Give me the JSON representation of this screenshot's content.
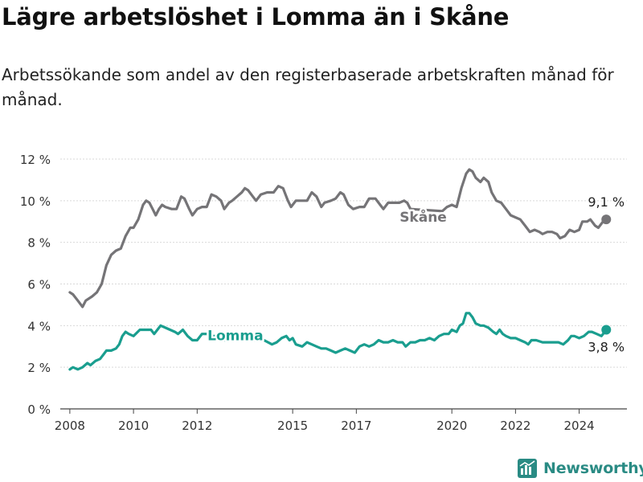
{
  "title": "Lägre arbetslöshet i Lomma än i Skåne",
  "subtitle": "Arbetssökande som andel av den registerbaserade arbetskraften månad för månad.",
  "brand": "Newsworthy",
  "colors": {
    "skane": "#757477",
    "lomma": "#1a9e8f",
    "grid": "#d9d9d9",
    "axis": "#444444",
    "brand": "#2a8b84"
  },
  "chart_data": {
    "type": "line",
    "title": "Lägre arbetslöshet i Lomma än i Skåne",
    "xlabel": "",
    "ylabel": "",
    "xlim": [
      2007.7,
      2025.5
    ],
    "ylim": [
      0,
      12
    ],
    "grid": true,
    "yticks": [
      0,
      2,
      4,
      6,
      8,
      10,
      12
    ],
    "ytick_labels": [
      "0 %",
      "2 %",
      "4 %",
      "6 %",
      "8 %",
      "10 %",
      "12 %"
    ],
    "xticks": [
      2008,
      2010,
      2012,
      2015,
      2017,
      2020,
      2022,
      2024
    ],
    "xtick_labels": [
      "2008",
      "2010",
      "2012",
      "2015",
      "2017",
      "2020",
      "2022",
      "2024"
    ],
    "series": [
      {
        "name": "Skåne",
        "label": "Skåne",
        "end_label": "9,1 %",
        "end_value": 9.1,
        "points": [
          [
            2008.0,
            5.6
          ],
          [
            2008.1,
            5.5
          ],
          [
            2008.25,
            5.2
          ],
          [
            2008.4,
            4.9
          ],
          [
            2008.5,
            5.2
          ],
          [
            2008.7,
            5.4
          ],
          [
            2008.85,
            5.6
          ],
          [
            2009.0,
            6.0
          ],
          [
            2009.15,
            6.9
          ],
          [
            2009.3,
            7.4
          ],
          [
            2009.45,
            7.6
          ],
          [
            2009.6,
            7.7
          ],
          [
            2009.75,
            8.3
          ],
          [
            2009.9,
            8.7
          ],
          [
            2010.0,
            8.7
          ],
          [
            2010.15,
            9.1
          ],
          [
            2010.3,
            9.8
          ],
          [
            2010.4,
            10.0
          ],
          [
            2010.5,
            9.9
          ],
          [
            2010.6,
            9.6
          ],
          [
            2010.7,
            9.3
          ],
          [
            2010.8,
            9.6
          ],
          [
            2010.9,
            9.8
          ],
          [
            2011.0,
            9.7
          ],
          [
            2011.2,
            9.6
          ],
          [
            2011.35,
            9.6
          ],
          [
            2011.5,
            10.2
          ],
          [
            2011.6,
            10.1
          ],
          [
            2011.75,
            9.6
          ],
          [
            2011.85,
            9.3
          ],
          [
            2012.0,
            9.6
          ],
          [
            2012.15,
            9.7
          ],
          [
            2012.3,
            9.7
          ],
          [
            2012.45,
            10.3
          ],
          [
            2012.6,
            10.2
          ],
          [
            2012.75,
            10.0
          ],
          [
            2012.85,
            9.6
          ],
          [
            2013.0,
            9.9
          ],
          [
            2013.1,
            10.0
          ],
          [
            2013.25,
            10.2
          ],
          [
            2013.4,
            10.4
          ],
          [
            2013.5,
            10.6
          ],
          [
            2013.6,
            10.5
          ],
          [
            2013.75,
            10.2
          ],
          [
            2013.85,
            10.0
          ],
          [
            2014.0,
            10.3
          ],
          [
            2014.2,
            10.4
          ],
          [
            2014.4,
            10.4
          ],
          [
            2014.55,
            10.7
          ],
          [
            2014.7,
            10.6
          ],
          [
            2014.85,
            10.0
          ],
          [
            2014.95,
            9.7
          ],
          [
            2015.1,
            10.0
          ],
          [
            2015.3,
            10.0
          ],
          [
            2015.45,
            10.0
          ],
          [
            2015.6,
            10.4
          ],
          [
            2015.75,
            10.2
          ],
          [
            2015.9,
            9.7
          ],
          [
            2016.0,
            9.9
          ],
          [
            2016.2,
            10.0
          ],
          [
            2016.35,
            10.1
          ],
          [
            2016.5,
            10.4
          ],
          [
            2016.6,
            10.3
          ],
          [
            2016.75,
            9.8
          ],
          [
            2016.9,
            9.6
          ],
          [
            2017.1,
            9.7
          ],
          [
            2017.25,
            9.7
          ],
          [
            2017.4,
            10.1
          ],
          [
            2017.6,
            10.1
          ],
          [
            2017.75,
            9.8
          ],
          [
            2017.85,
            9.6
          ],
          [
            2018.0,
            9.9
          ],
          [
            2018.2,
            9.9
          ],
          [
            2018.35,
            9.9
          ],
          [
            2018.5,
            10.0
          ],
          [
            2018.6,
            9.9
          ],
          [
            2018.7,
            9.6
          ],
          [
            2019.7,
            9.5
          ],
          [
            2019.85,
            9.7
          ],
          [
            2020.0,
            9.8
          ],
          [
            2020.15,
            9.7
          ],
          [
            2020.3,
            10.6
          ],
          [
            2020.45,
            11.3
          ],
          [
            2020.55,
            11.5
          ],
          [
            2020.65,
            11.4
          ],
          [
            2020.75,
            11.1
          ],
          [
            2020.9,
            10.9
          ],
          [
            2021.0,
            11.1
          ],
          [
            2021.15,
            10.9
          ],
          [
            2021.25,
            10.4
          ],
          [
            2021.4,
            10.0
          ],
          [
            2021.55,
            9.9
          ],
          [
            2021.7,
            9.6
          ],
          [
            2021.85,
            9.3
          ],
          [
            2022.0,
            9.2
          ],
          [
            2022.15,
            9.1
          ],
          [
            2022.3,
            8.8
          ],
          [
            2022.45,
            8.5
          ],
          [
            2022.6,
            8.6
          ],
          [
            2022.75,
            8.5
          ],
          [
            2022.85,
            8.4
          ],
          [
            2023.0,
            8.5
          ],
          [
            2023.15,
            8.5
          ],
          [
            2023.3,
            8.4
          ],
          [
            2023.4,
            8.2
          ],
          [
            2023.55,
            8.3
          ],
          [
            2023.7,
            8.6
          ],
          [
            2023.85,
            8.5
          ],
          [
            2024.0,
            8.6
          ],
          [
            2024.1,
            9.0
          ],
          [
            2024.25,
            9.0
          ],
          [
            2024.35,
            9.1
          ],
          [
            2024.5,
            8.8
          ],
          [
            2024.6,
            8.7
          ],
          [
            2024.75,
            9.0
          ],
          [
            2024.85,
            9.1
          ]
        ]
      },
      {
        "name": "Lomma",
        "label": "Lomma",
        "end_label": "3,8 %",
        "end_value": 3.8,
        "points": [
          [
            2008.0,
            1.9
          ],
          [
            2008.1,
            2.0
          ],
          [
            2008.25,
            1.9
          ],
          [
            2008.4,
            2.0
          ],
          [
            2008.55,
            2.2
          ],
          [
            2008.65,
            2.1
          ],
          [
            2008.8,
            2.3
          ],
          [
            2008.95,
            2.4
          ],
          [
            2009.05,
            2.6
          ],
          [
            2009.15,
            2.8
          ],
          [
            2009.3,
            2.8
          ],
          [
            2009.45,
            2.9
          ],
          [
            2009.55,
            3.1
          ],
          [
            2009.65,
            3.5
          ],
          [
            2009.75,
            3.7
          ],
          [
            2009.85,
            3.6
          ],
          [
            2010.0,
            3.5
          ],
          [
            2010.2,
            3.8
          ],
          [
            2010.4,
            3.8
          ],
          [
            2010.55,
            3.8
          ],
          [
            2010.65,
            3.6
          ],
          [
            2010.75,
            3.8
          ],
          [
            2010.85,
            4.0
          ],
          [
            2011.0,
            3.9
          ],
          [
            2011.15,
            3.8
          ],
          [
            2011.3,
            3.7
          ],
          [
            2011.4,
            3.6
          ],
          [
            2011.55,
            3.8
          ],
          [
            2011.7,
            3.5
          ],
          [
            2011.85,
            3.3
          ],
          [
            2012.0,
            3.3
          ],
          [
            2012.15,
            3.6
          ],
          [
            2012.3,
            3.6
          ],
          [
            2012.45,
            3.5
          ],
          [
            2012.6,
            3.5
          ],
          [
            2012.75,
            3.5
          ],
          [
            2012.85,
            3.3
          ],
          [
            2013.0,
            3.3
          ],
          [
            2013.2,
            3.4
          ],
          [
            2013.5,
            3.4
          ],
          [
            2013.8,
            3.3
          ],
          [
            2014.1,
            3.3
          ],
          [
            2014.35,
            3.1
          ],
          [
            2014.5,
            3.2
          ],
          [
            2014.65,
            3.4
          ],
          [
            2014.8,
            3.5
          ],
          [
            2014.9,
            3.3
          ],
          [
            2015.0,
            3.4
          ],
          [
            2015.1,
            3.1
          ],
          [
            2015.3,
            3.0
          ],
          [
            2015.45,
            3.2
          ],
          [
            2015.6,
            3.1
          ],
          [
            2015.75,
            3.0
          ],
          [
            2015.9,
            2.9
          ],
          [
            2016.05,
            2.9
          ],
          [
            2016.2,
            2.8
          ],
          [
            2016.35,
            2.7
          ],
          [
            2016.5,
            2.8
          ],
          [
            2016.65,
            2.9
          ],
          [
            2016.8,
            2.8
          ],
          [
            2016.95,
            2.7
          ],
          [
            2017.1,
            3.0
          ],
          [
            2017.25,
            3.1
          ],
          [
            2017.4,
            3.0
          ],
          [
            2017.55,
            3.1
          ],
          [
            2017.7,
            3.3
          ],
          [
            2017.85,
            3.2
          ],
          [
            2018.0,
            3.2
          ],
          [
            2018.15,
            3.3
          ],
          [
            2018.3,
            3.2
          ],
          [
            2018.45,
            3.2
          ],
          [
            2018.55,
            3.0
          ],
          [
            2018.7,
            3.2
          ],
          [
            2018.85,
            3.2
          ],
          [
            2019.0,
            3.3
          ],
          [
            2019.15,
            3.3
          ],
          [
            2019.3,
            3.4
          ],
          [
            2019.45,
            3.3
          ],
          [
            2019.6,
            3.5
          ],
          [
            2019.75,
            3.6
          ],
          [
            2019.9,
            3.6
          ],
          [
            2020.0,
            3.8
          ],
          [
            2020.15,
            3.7
          ],
          [
            2020.25,
            4.0
          ],
          [
            2020.35,
            4.1
          ],
          [
            2020.45,
            4.6
          ],
          [
            2020.55,
            4.6
          ],
          [
            2020.65,
            4.4
          ],
          [
            2020.75,
            4.1
          ],
          [
            2020.9,
            4.0
          ],
          [
            2021.0,
            4.0
          ],
          [
            2021.15,
            3.9
          ],
          [
            2021.3,
            3.7
          ],
          [
            2021.4,
            3.6
          ],
          [
            2021.5,
            3.8
          ],
          [
            2021.6,
            3.6
          ],
          [
            2021.7,
            3.5
          ],
          [
            2021.85,
            3.4
          ],
          [
            2022.0,
            3.4
          ],
          [
            2022.15,
            3.3
          ],
          [
            2022.3,
            3.2
          ],
          [
            2022.4,
            3.1
          ],
          [
            2022.5,
            3.3
          ],
          [
            2022.65,
            3.3
          ],
          [
            2022.85,
            3.2
          ],
          [
            2023.0,
            3.2
          ],
          [
            2023.2,
            3.2
          ],
          [
            2023.35,
            3.2
          ],
          [
            2023.5,
            3.1
          ],
          [
            2023.65,
            3.3
          ],
          [
            2023.75,
            3.5
          ],
          [
            2023.85,
            3.5
          ],
          [
            2024.0,
            3.4
          ],
          [
            2024.15,
            3.5
          ],
          [
            2024.3,
            3.7
          ],
          [
            2024.4,
            3.7
          ],
          [
            2024.55,
            3.6
          ],
          [
            2024.7,
            3.5
          ],
          [
            2024.85,
            3.8
          ]
        ]
      }
    ]
  }
}
